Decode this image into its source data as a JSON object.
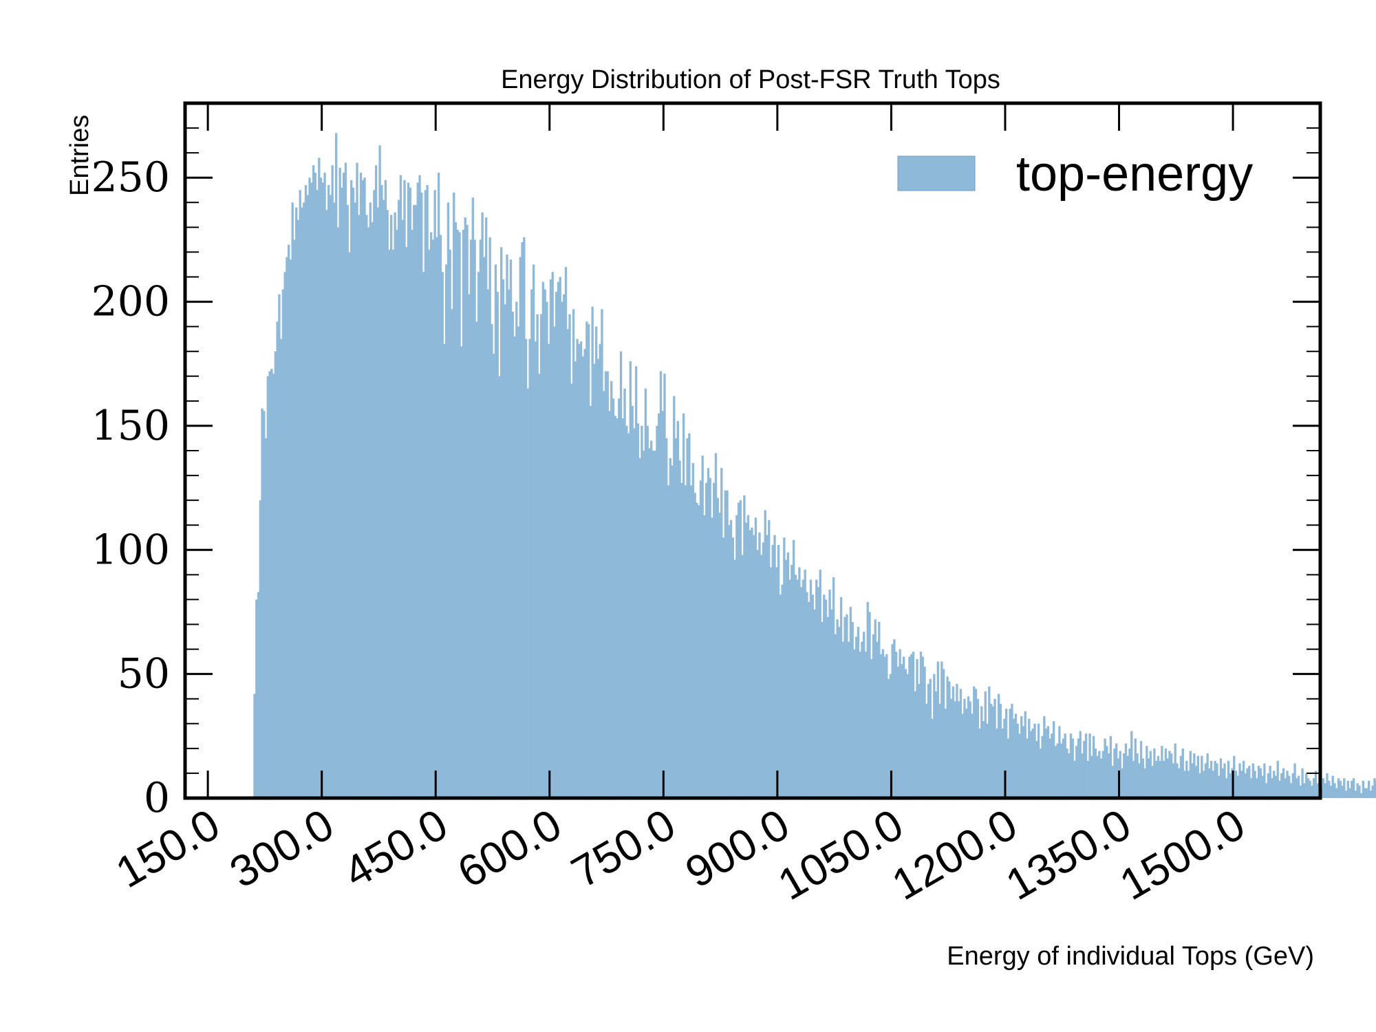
{
  "chart_data": {
    "type": "bar",
    "title": "Energy Distribution of Post-FSR Truth Tops",
    "xlabel": "Energy of individual Tops (GeV)",
    "ylabel": "Entries",
    "xlim": [
      120,
      1615
    ],
    "ylim": [
      0,
      280
    ],
    "x_ticks": [
      150,
      300,
      450,
      600,
      750,
      900,
      1050,
      1200,
      1350,
      1500
    ],
    "x_tick_labels": [
      "150.0",
      "300.0",
      "450.0",
      "600.0",
      "750.0",
      "900.0",
      "1050.0",
      "1200.0",
      "1350.0",
      "1500.0"
    ],
    "y_ticks": [
      0,
      50,
      100,
      150,
      200,
      250
    ],
    "y_tick_labels": [
      "0",
      "50",
      "100",
      "150",
      "200",
      "250"
    ],
    "grid": false,
    "legend_position": "top-right",
    "bar_color": "#8fb9d9",
    "series": [
      {
        "name": "top-energy",
        "bin_start": 210,
        "bin_width": 2.5,
        "values": [
          42,
          80,
          83,
          120,
          157,
          156,
          145,
          170,
          172,
          173,
          171,
          180,
          192,
          203,
          185,
          205,
          212,
          218,
          223,
          217,
          240,
          225,
          238,
          233,
          245,
          238,
          240,
          247,
          243,
          250,
          248,
          255,
          252,
          245,
          258,
          250,
          248,
          252,
          237,
          247,
          243,
          255,
          240,
          268,
          230,
          254,
          246,
          252,
          256,
          239,
          220,
          249,
          246,
          240,
          256,
          235,
          252,
          249,
          250,
          235,
          230,
          240,
          232,
          245,
          255,
          238,
          263,
          247,
          241,
          249,
          237,
          221,
          235,
          221,
          236,
          229,
          241,
          251,
          233,
          249,
          222,
          248,
          246,
          229,
          239,
          239,
          248,
          251,
          244,
          212,
          245,
          247,
          221,
          228,
          225,
          245,
          226,
          252,
          227,
          212,
          183,
          215,
          240,
          221,
          197,
          244,
          232,
          229,
          228,
          182,
          229,
          234,
          231,
          203,
          225,
          242,
          225,
          192,
          212,
          225,
          236,
          218,
          234,
          205,
          226,
          191,
          179,
          215,
          204,
          170,
          222,
          209,
          199,
          219,
          205,
          217,
          196,
          186,
          200,
          190,
          218,
          224,
          226,
          185,
          165,
          185,
          205,
          215,
          184,
          195,
          171,
          195,
          208,
          205,
          200,
          183,
          209,
          212,
          190,
          204,
          208,
          210,
          200,
          203,
          214,
          189,
          195,
          167,
          197,
          176,
          185,
          183,
          184,
          178,
          181,
          192,
          191,
          158,
          198,
          175,
          190,
          177,
          183,
          197,
          164,
          172,
          172,
          156,
          168,
          161,
          154,
          153,
          161,
          180,
          153,
          165,
          150,
          147,
          176,
          158,
          149,
          174,
          151,
          137,
          150,
          140,
          165,
          150,
          141,
          144,
          140,
          140,
          150,
          155,
          172,
          156,
          171,
          145,
          126,
          137,
          134,
          162,
          145,
          152,
          136,
          127,
          155,
          126,
          145,
          147,
          126,
          135,
          123,
          119,
          118,
          128,
          138,
          114,
          127,
          133,
          129,
          113,
          127,
          139,
          121,
          115,
          133,
          105,
          124,
          124,
          110,
          112,
          105,
          96,
          114,
          119,
          120,
          98,
          122,
          111,
          114,
          108,
          109,
          106,
          113,
          100,
          107,
          98,
          103,
          116,
          106,
          112,
          93,
          102,
          106,
          93,
          102,
          82,
          86,
          105,
          96,
          99,
          88,
          94,
          104,
          90,
          88,
          93,
          85,
          88,
          92,
          83,
          79,
          88,
          82,
          76,
          88,
          85,
          92,
          71,
          82,
          80,
          73,
          84,
          76,
          89,
          66,
          72,
          69,
          81,
          63,
          73,
          74,
          63,
          77,
          71,
          60,
          65,
          69,
          59,
          63,
          67,
          59,
          79,
          75,
          56,
          66,
          72,
          63,
          71,
          58,
          60,
          57,
          58,
          48,
          50,
          62,
          64,
          59,
          53,
          60,
          54,
          57,
          52,
          50,
          57,
          58,
          59,
          43,
          56,
          46,
          59,
          57,
          53,
          38,
          46,
          48,
          32,
          50,
          43,
          55,
          38,
          55,
          52,
          36,
          49,
          47,
          40,
          45,
          39,
          46,
          39,
          44,
          34,
          40,
          36,
          41,
          39,
          34,
          45,
          44,
          40,
          28,
          37,
          31,
          43,
          30,
          45,
          38,
          37,
          40,
          28,
          42,
          38,
          28,
          32,
          36,
          24,
          36,
          38,
          32,
          34,
          30,
          26,
          33,
          29,
          35,
          24,
          32,
          27,
          28,
          30,
          23,
          30,
          20,
          25,
          33,
          28,
          29,
          24,
          26,
          31,
          21,
          22,
          29,
          22,
          24,
          26,
          20,
          18,
          26,
          24,
          15,
          21,
          24,
          27,
          18,
          23,
          26,
          15,
          26,
          17,
          25,
          20,
          17,
          19,
          16,
          19,
          24,
          21,
          18,
          25,
          13,
          20,
          22,
          16,
          19,
          12,
          18,
          22,
          17,
          20,
          27,
          15,
          24,
          18,
          14,
          23,
          16,
          12,
          21,
          16,
          19,
          13,
          20,
          15,
          17,
          15,
          21,
          15,
          20,
          16,
          19,
          18,
          14,
          22,
          14,
          12,
          17,
          20,
          11,
          15,
          11,
          19,
          14,
          18,
          13,
          17,
          10,
          17,
          11,
          14,
          18,
          12,
          15,
          11,
          15,
          14,
          9,
          16,
          12,
          14,
          8,
          15,
          10,
          12,
          17,
          11,
          9,
          14,
          11,
          15,
          10,
          12,
          13,
          8,
          14,
          11,
          8,
          13,
          12,
          9,
          14,
          6,
          10,
          13,
          8,
          11,
          9,
          15,
          7,
          10,
          12,
          8,
          11,
          9,
          6,
          10,
          14,
          8,
          9,
          5,
          12,
          6,
          10,
          8,
          7,
          5,
          8,
          11,
          6,
          9,
          4,
          8,
          6,
          10,
          7,
          5,
          9,
          6,
          4,
          8,
          7,
          5,
          8,
          3,
          7,
          4,
          7,
          8,
          3,
          6,
          5,
          2,
          7,
          4,
          4,
          7,
          3,
          5,
          8,
          7,
          3,
          9,
          11,
          6,
          9,
          12,
          7,
          10,
          8,
          5,
          11,
          10,
          4,
          7,
          12
        ]
      }
    ]
  }
}
